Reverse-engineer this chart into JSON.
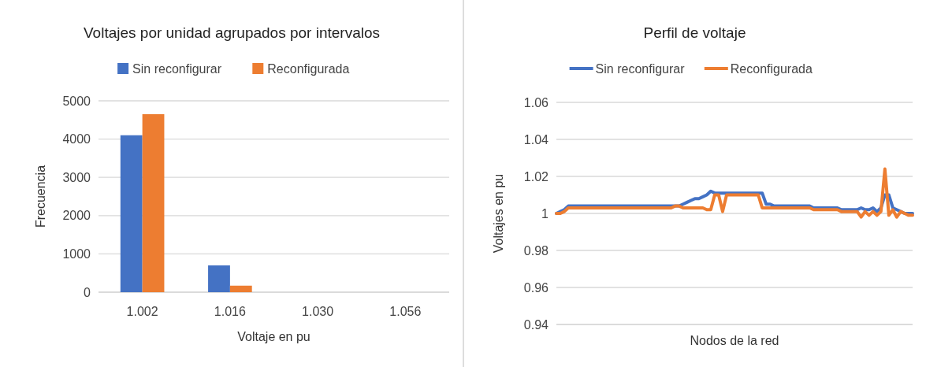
{
  "chart_data": [
    {
      "type": "bar",
      "title": "Voltajes por unidad agrupados por intervalos",
      "xlabel": "Voltaje en pu",
      "ylabel": "Frecuencia",
      "categories": [
        "1.002",
        "1.016",
        "1.030",
        "1.056"
      ],
      "series": [
        {
          "name": "Sin reconfigurar",
          "color": "#4472c4",
          "values": [
            4100,
            700,
            0,
            0
          ]
        },
        {
          "name": "Reconfigurada",
          "color": "#ed7d31",
          "values": [
            4650,
            170,
            0,
            0
          ]
        }
      ],
      "ylim": [
        0,
        5000
      ],
      "yticks": [
        0,
        1000,
        2000,
        3000,
        4000,
        5000
      ],
      "grid": "y",
      "legend": "top"
    },
    {
      "type": "line",
      "title": "Perfil de voltaje",
      "xlabel": "Nodos de la red",
      "ylabel": "Voltajes en pu",
      "categories": [
        null,
        null,
        null,
        null,
        null,
        null,
        null,
        null,
        null,
        null,
        null,
        null,
        null,
        null,
        null,
        null,
        null,
        null,
        null,
        null,
        null,
        null,
        null,
        null,
        null,
        null,
        null,
        null,
        null,
        null,
        null,
        null,
        null,
        null,
        null,
        null,
        null,
        null,
        null,
        null,
        null,
        null,
        null,
        null,
        null,
        null,
        null,
        null,
        null,
        null,
        null,
        null,
        null,
        null,
        null,
        null,
        null,
        null,
        null,
        null,
        null,
        null,
        null,
        null,
        null,
        null,
        null,
        null,
        null,
        null,
        null,
        null,
        null,
        null,
        null,
        null,
        null,
        null,
        null,
        null,
        null,
        null,
        null,
        null,
        null,
        null,
        null,
        null,
        null,
        null,
        null
      ],
      "series": [
        {
          "name": "Sin reconfigurar",
          "color": "#4472c4",
          "values": [
            1.0,
            1.001,
            1.002,
            1.004,
            1.004,
            1.004,
            1.004,
            1.004,
            1.004,
            1.004,
            1.004,
            1.004,
            1.004,
            1.004,
            1.004,
            1.004,
            1.004,
            1.004,
            1.004,
            1.004,
            1.004,
            1.004,
            1.004,
            1.004,
            1.004,
            1.004,
            1.004,
            1.004,
            1.004,
            1.004,
            1.004,
            1.004,
            1.005,
            1.006,
            1.007,
            1.008,
            1.008,
            1.009,
            1.01,
            1.012,
            1.011,
            1.011,
            1.011,
            1.011,
            1.011,
            1.011,
            1.011,
            1.011,
            1.011,
            1.011,
            1.011,
            1.011,
            1.011,
            1.005,
            1.005,
            1.004,
            1.004,
            1.004,
            1.004,
            1.004,
            1.004,
            1.004,
            1.004,
            1.004,
            1.004,
            1.003,
            1.003,
            1.003,
            1.003,
            1.003,
            1.003,
            1.003,
            1.002,
            1.002,
            1.002,
            1.002,
            1.002,
            1.003,
            1.002,
            1.002,
            1.003,
            1.001,
            1.003,
            1.01,
            1.01,
            1.003,
            1.002,
            1.001,
            1.0,
            1.0,
            1.0
          ]
        },
        {
          "name": "Reconfigurada",
          "color": "#ed7d31",
          "values": [
            1.0,
            1.0,
            1.001,
            1.003,
            1.003,
            1.003,
            1.003,
            1.003,
            1.003,
            1.003,
            1.003,
            1.003,
            1.003,
            1.003,
            1.003,
            1.003,
            1.003,
            1.003,
            1.003,
            1.003,
            1.003,
            1.003,
            1.003,
            1.003,
            1.003,
            1.003,
            1.003,
            1.003,
            1.003,
            1.003,
            1.004,
            1.004,
            1.003,
            1.003,
            1.003,
            1.003,
            1.003,
            1.003,
            1.002,
            1.002,
            1.01,
            1.01,
            1.001,
            1.01,
            1.01,
            1.01,
            1.01,
            1.01,
            1.01,
            1.01,
            1.01,
            1.01,
            1.003,
            1.003,
            1.003,
            1.003,
            1.003,
            1.003,
            1.003,
            1.003,
            1.003,
            1.003,
            1.003,
            1.003,
            1.003,
            1.002,
            1.002,
            1.002,
            1.002,
            1.002,
            1.002,
            1.002,
            1.001,
            1.001,
            1.001,
            1.001,
            1.001,
            0.998,
            1.001,
            0.999,
            1.001,
            0.999,
            1.001,
            1.024,
            0.999,
            1.002,
            0.998,
            1.001,
            1.0,
            0.999,
            0.999
          ]
        }
      ],
      "ylim": [
        0.94,
        1.06
      ],
      "yticks": [
        {
          "value": 0.94,
          "label": "0.94"
        },
        {
          "value": 0.96,
          "label": "0.96"
        },
        {
          "value": 0.98,
          "label": "0.98"
        },
        1,
        {
          "value": 1.02,
          "label": "1.02"
        },
        {
          "value": 1.04,
          "label": "1.04"
        },
        {
          "value": 1.06,
          "label": "1.06"
        }
      ],
      "grid": "y",
      "legend": "top",
      "tick_labels": "y",
      "marker": "none",
      "line_style": "solid"
    }
  ]
}
